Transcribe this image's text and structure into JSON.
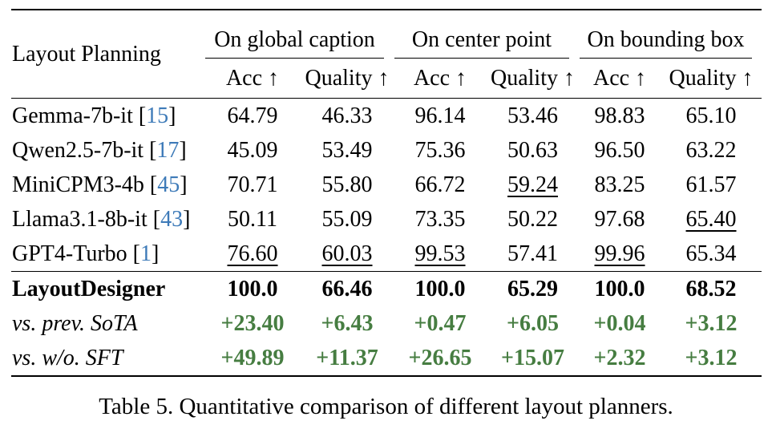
{
  "colors": {
    "delta_green": "#467d41",
    "citation_blue": "#3d7ab8",
    "rule_black": "#000000",
    "background": "#ffffff"
  },
  "table": {
    "col1_header": "Layout Planning",
    "groups": [
      {
        "label": "On global caption"
      },
      {
        "label": "On center point"
      },
      {
        "label": "On bounding box"
      }
    ],
    "subheaders": [
      "Acc ↑",
      "Quality ↑",
      "Acc ↑",
      "Quality ↑",
      "Acc ↑",
      "Quality ↑"
    ],
    "rows": [
      {
        "name": "Gemma-7b-it",
        "cite": "15",
        "style": "model",
        "values": [
          "64.79",
          "46.33",
          "96.14",
          "53.46",
          "98.83",
          "65.10"
        ],
        "underline": [
          false,
          false,
          false,
          false,
          false,
          false
        ]
      },
      {
        "name": "Qwen2.5-7b-it",
        "cite": "17",
        "style": "model",
        "values": [
          "45.09",
          "53.49",
          "75.36",
          "50.63",
          "96.50",
          "63.22"
        ],
        "underline": [
          false,
          false,
          false,
          false,
          false,
          false
        ]
      },
      {
        "name": "MiniCPM3-4b",
        "cite": "45",
        "style": "model",
        "values": [
          "70.71",
          "55.80",
          "66.72",
          "59.24",
          "83.25",
          "61.57"
        ],
        "underline": [
          false,
          false,
          false,
          true,
          false,
          false
        ]
      },
      {
        "name": "Llama3.1-8b-it",
        "cite": "43",
        "style": "model",
        "values": [
          "50.11",
          "55.09",
          "73.35",
          "50.22",
          "97.68",
          "65.40"
        ],
        "underline": [
          false,
          false,
          false,
          false,
          false,
          true
        ]
      },
      {
        "name": "GPT4-Turbo",
        "cite": "1",
        "style": "model",
        "values": [
          "76.60",
          "60.03",
          "99.53",
          "57.41",
          "99.96",
          "65.34"
        ],
        "underline": [
          true,
          true,
          true,
          false,
          true,
          false
        ]
      },
      {
        "name": "LayoutDesigner",
        "cite": null,
        "style": "best",
        "values": [
          "100.0",
          "66.46",
          "100.0",
          "65.29",
          "100.0",
          "68.52"
        ],
        "underline": [
          false,
          false,
          false,
          false,
          false,
          false
        ]
      },
      {
        "name": "vs. prev. SoTA",
        "cite": null,
        "style": "delta",
        "values": [
          "+23.40",
          "+6.43",
          "+0.47",
          "+6.05",
          "+0.04",
          "+3.12"
        ],
        "underline": [
          false,
          false,
          false,
          false,
          false,
          false
        ]
      },
      {
        "name": "vs. w/o. SFT",
        "cite": null,
        "style": "delta",
        "values": [
          "+49.89",
          "+11.37",
          "+26.65",
          "+15.07",
          "+2.32",
          "+3.12"
        ],
        "underline": [
          false,
          false,
          false,
          false,
          false,
          false
        ]
      }
    ]
  },
  "caption": "Table 5. Quantitative comparison of different layout planners."
}
